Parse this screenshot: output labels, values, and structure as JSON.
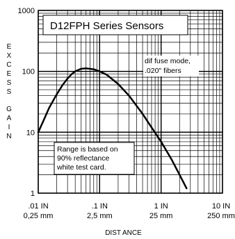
{
  "chart_data": {
    "type": "line",
    "title": "D12FPH Series Sensors",
    "xlabel": "DIST ANCE",
    "ylabel": "EXCESS GAIN",
    "x_scale": "log",
    "y_scale": "log",
    "xlim": [
      0.01,
      10
    ],
    "ylim": [
      1,
      1000
    ],
    "grid": true,
    "x_ticks": [
      {
        "value": 0.01,
        "label_in": ".01 IN",
        "label_mm": "0,25 mm"
      },
      {
        "value": 0.1,
        "label_in": ".1 IN",
        "label_mm": "2,5 mm"
      },
      {
        "value": 1,
        "label_in": "1 IN",
        "label_mm": "25 mm"
      },
      {
        "value": 10,
        "label_in": "10 IN",
        "label_mm": "250 mm"
      }
    ],
    "y_ticks": [
      {
        "value": 1000,
        "label": "1000"
      },
      {
        "value": 100,
        "label": "100"
      },
      {
        "value": 10,
        "label": "10"
      },
      {
        "value": 1,
        "label": "1"
      }
    ],
    "series": [
      {
        "x": [
          0.01,
          0.012,
          0.015,
          0.02,
          0.025,
          0.03,
          0.035,
          0.04,
          0.05,
          0.06,
          0.08,
          0.1,
          0.13,
          0.2,
          0.3,
          0.5,
          0.7,
          1.0,
          1.5,
          2.0,
          2.6
        ],
        "y": [
          10,
          15,
          25,
          42,
          60,
          76,
          90,
          100,
          110,
          112,
          108,
          100,
          88,
          62,
          40,
          20,
          12,
          7,
          3.5,
          2,
          1.2
        ]
      }
    ],
    "annotations": [
      {
        "lines": [
          "dif fuse mode,",
          ".020\" fibers"
        ]
      },
      {
        "lines": [
          "Range is based on",
          "90% reflectance",
          "white test card."
        ]
      }
    ]
  }
}
